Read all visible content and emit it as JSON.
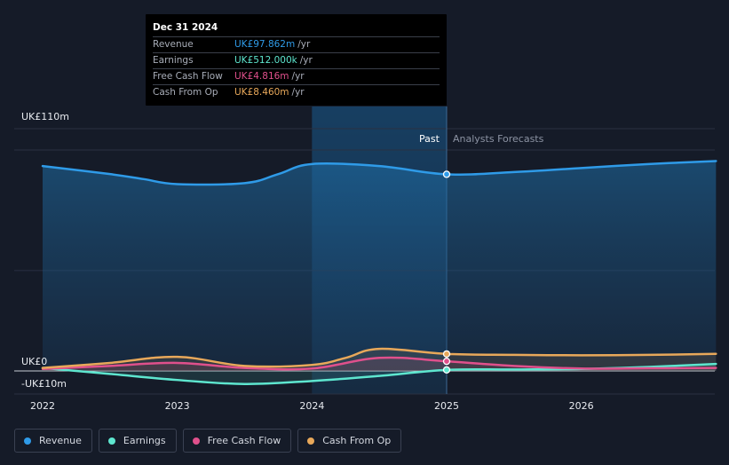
{
  "tooltip": {
    "date": "Dec 31 2024",
    "rows": [
      {
        "label": "Revenue",
        "value": "UK£97.862m",
        "unit": "/yr",
        "color": "#2f9be8"
      },
      {
        "label": "Earnings",
        "value": "UK£512.000k",
        "unit": "/yr",
        "color": "#5ee6cf"
      },
      {
        "label": "Free Cash Flow",
        "value": "UK£4.816m",
        "unit": "/yr",
        "color": "#e0508c"
      },
      {
        "label": "Cash From Op",
        "value": "UK£8.460m",
        "unit": "/yr",
        "color": "#e8a85a"
      }
    ]
  },
  "markers": {
    "past": "Past",
    "forecast": "Analysts Forecasts"
  },
  "legend": [
    {
      "label": "Revenue",
      "color": "#2f9be8"
    },
    {
      "label": "Earnings",
      "color": "#5ee6cf"
    },
    {
      "label": "Free Cash Flow",
      "color": "#e0508c"
    },
    {
      "label": "Cash From Op",
      "color": "#e8a85a"
    }
  ],
  "chart_data": {
    "type": "line",
    "y_tick_labels": [
      "UK£110m",
      "UK£0",
      "-UK£10m"
    ],
    "ylim": [
      -10,
      110
    ],
    "xlim": [
      2022,
      2027
    ],
    "x_tick_labels": [
      "2022",
      "2023",
      "2024",
      "2025",
      "2026"
    ],
    "x_ticks": [
      2022,
      2023,
      2024,
      2025,
      2026
    ],
    "divider_x": 2025,
    "highlight_range": [
      2024,
      2025
    ],
    "series": [
      {
        "name": "Revenue",
        "color": "#2f9be8",
        "x": [
          2022,
          2022.5,
          2022.75,
          2023,
          2023.5,
          2023.75,
          2024,
          2024.5,
          2025,
          2025.5,
          2026,
          2026.5,
          2027
        ],
        "y": [
          102,
          98,
          95.5,
          93,
          93.5,
          98,
          103,
          102,
          97.9,
          99,
          101,
          103,
          104.5
        ]
      },
      {
        "name": "Earnings",
        "color": "#5ee6cf",
        "x": [
          2022,
          2022.5,
          2023,
          2023.5,
          2024,
          2024.5,
          2025,
          2025.5,
          2026,
          2026.5,
          2027
        ],
        "y": [
          1.5,
          -1.5,
          -4.5,
          -6.5,
          -5,
          -2.5,
          0.512,
          0.7,
          1,
          2,
          3.5
        ]
      },
      {
        "name": "Free Cash Flow",
        "color": "#e0508c",
        "x": [
          2022,
          2022.5,
          2023,
          2023.5,
          2024,
          2024.5,
          2025,
          2025.5,
          2026,
          2026.5,
          2027
        ],
        "y": [
          1,
          2.5,
          4,
          1.5,
          1.2,
          6.5,
          4.8,
          2.5,
          1.2,
          1.3,
          1.5
        ]
      },
      {
        "name": "Cash From Op",
        "color": "#e8a85a",
        "x": [
          2022,
          2022.5,
          2023,
          2023.5,
          2024,
          2024.25,
          2024.5,
          2025,
          2025.5,
          2026,
          2026.5,
          2027
        ],
        "y": [
          1.5,
          4,
          7,
          2.5,
          3,
          6.5,
          11,
          8.46,
          8,
          7.8,
          8,
          8.5
        ]
      }
    ],
    "highlight_points": [
      {
        "series": "Revenue",
        "x": 2025,
        "y": 97.9
      },
      {
        "series": "Cash From Op",
        "x": 2025,
        "y": 8.46
      },
      {
        "series": "Free Cash Flow",
        "x": 2025,
        "y": 4.8
      },
      {
        "series": "Earnings",
        "x": 2025,
        "y": 0.512
      }
    ]
  }
}
